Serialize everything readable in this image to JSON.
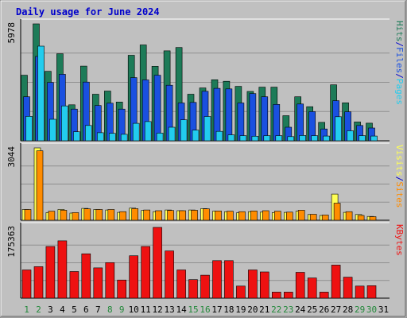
{
  "chart_data": {
    "type": "bar",
    "title": "Daily usage for June 2024",
    "x": [
      1,
      2,
      3,
      4,
      5,
      6,
      7,
      8,
      9,
      10,
      11,
      12,
      13,
      14,
      15,
      16,
      17,
      18,
      19,
      20,
      21,
      22,
      23,
      24,
      25,
      26,
      27,
      28,
      29,
      30,
      31
    ],
    "weekend_days": [
      1,
      2,
      8,
      9,
      15,
      16,
      22,
      23,
      29,
      30
    ],
    "panels": [
      {
        "id": "hits",
        "max_label": "5978",
        "ylim": [
          0,
          5978
        ],
        "series": [
          {
            "name": "Hits",
            "color": "#1d7b58",
            "values": [
              3350,
              5978,
              3550,
              4450,
              1840,
              3820,
              2380,
              2540,
              1980,
              4370,
              4900,
              3810,
              4600,
              4770,
              2380,
              2700,
              3120,
              3040,
              2780,
              2520,
              2740,
              2740,
              1280,
              2250,
              1740,
              940,
              2860,
              1940,
              960,
              900,
              null
            ]
          },
          {
            "name": "Files",
            "color": "#1a50e0",
            "values": [
              2250,
              4310,
              2980,
              3400,
              1620,
              3000,
              1800,
              1920,
              1620,
              3230,
              3110,
              3350,
              2840,
              1930,
              1960,
              2530,
              2680,
              2650,
              1930,
              2410,
              2250,
              1860,
              690,
              1880,
              1490,
              600,
              2050,
              1480,
              780,
              650,
              null
            ]
          },
          {
            "name": "Pages",
            "color": "#22ccee",
            "values": [
              1250,
              4840,
              1100,
              1780,
              460,
              780,
              410,
              380,
              330,
              890,
              980,
              390,
              690,
              1070,
              540,
              1240,
              480,
              300,
              260,
              230,
              260,
              260,
              210,
              270,
              260,
              240,
              1230,
              510,
              260,
              240,
              null
            ]
          }
        ],
        "axis_title_parts": [
          "Pages",
          "/",
          "Files",
          "/",
          "Hits"
        ]
      },
      {
        "id": "visits",
        "max_label": "3044",
        "ylim": [
          0,
          3044
        ],
        "series": [
          {
            "name": "Visits",
            "color": "#ffff55",
            "values": [
              450,
              3044,
              320,
              450,
              300,
              500,
              450,
              430,
              330,
              510,
              410,
              360,
              430,
              400,
              430,
              490,
              380,
              360,
              310,
              360,
              340,
              320,
              330,
              380,
              240,
              200,
              1100,
              330,
              240,
              160,
              null
            ]
          },
          {
            "name": "Sites",
            "color": "#ff8c00",
            "values": [
              450,
              2920,
              380,
              420,
              320,
              480,
              450,
              450,
              360,
              490,
              430,
              400,
              410,
              400,
              420,
              480,
              390,
              380,
              360,
              390,
              400,
              380,
              340,
              420,
              250,
              220,
              720,
              360,
              200,
              150,
              null
            ]
          }
        ],
        "axis_title_parts": [
          "Sites",
          "/",
          "Visits"
        ]
      },
      {
        "id": "kbytes",
        "max_label": "175363",
        "ylim": [
          0,
          175363
        ],
        "series": [
          {
            "name": "KBytes",
            "color": "#ee1111",
            "values": [
              70000,
              78000,
              128000,
              142000,
              66000,
              110000,
              75000,
              88000,
              45000,
              105000,
              128000,
              175363,
              117000,
              70000,
              46000,
              57000,
              93000,
              93000,
              30000,
              70000,
              65000,
              15000,
              15000,
              64000,
              50000,
              15000,
              82000,
              52000,
              30000,
              31000,
              null
            ]
          }
        ],
        "axis_title_parts": [
          "KBytes"
        ]
      }
    ]
  },
  "colors": {
    "frame": "#c0c0c0",
    "plot_bg": "#c0c0c0",
    "title": "#0000cc",
    "day_weekday": "#000000",
    "day_weekend": "#22883a",
    "grid": "#8f8f8f",
    "separator": "#0000cc"
  }
}
